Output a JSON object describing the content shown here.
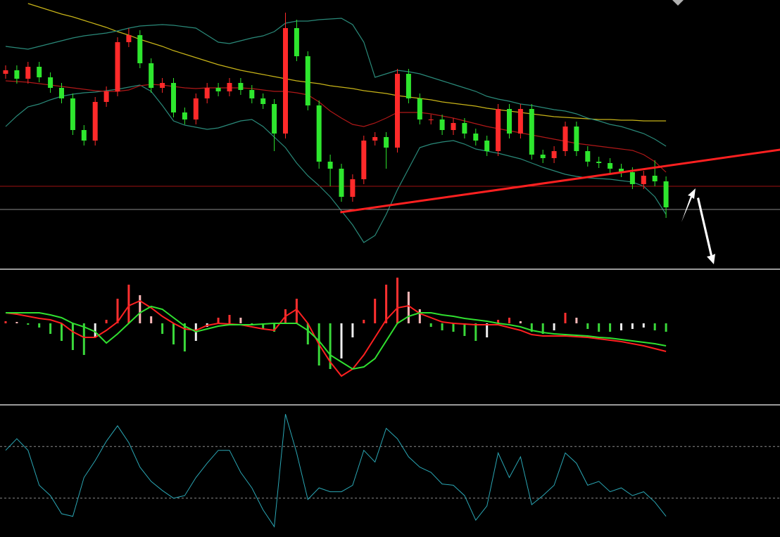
{
  "chart_data": [
    {
      "type": "candlestick",
      "up_color": "#ff2a2a",
      "down_color": "#2ee62e",
      "ylim": [
        -2,
        380
      ],
      "open": [
        275,
        280,
        268,
        285,
        270,
        255,
        240,
        195,
        180,
        235,
        250,
        320,
        330,
        290,
        255,
        262,
        220,
        210,
        240,
        255,
        250,
        262,
        252,
        240,
        232,
        190,
        340,
        300,
        230,
        150,
        140,
        100,
        125,
        180,
        185,
        170,
        275,
        240,
        210,
        210,
        195,
        205,
        190,
        180,
        165,
        225,
        190,
        225,
        160,
        155,
        165,
        200,
        165,
        150,
        148,
        140,
        135,
        118,
        130,
        122
      ],
      "high": [
        287,
        287,
        292,
        292,
        277,
        262,
        247,
        202,
        242,
        257,
        327,
        340,
        337,
        297,
        269,
        269,
        227,
        247,
        262,
        262,
        269,
        269,
        259,
        247,
        239,
        362,
        352,
        307,
        237,
        160,
        147,
        132,
        187,
        192,
        192,
        282,
        282,
        247,
        217,
        217,
        212,
        212,
        197,
        187,
        232,
        232,
        232,
        232,
        167,
        172,
        207,
        207,
        172,
        157,
        155,
        147,
        142,
        137,
        152,
        129
      ],
      "low": [
        268,
        261,
        261,
        263,
        248,
        233,
        188,
        173,
        173,
        228,
        243,
        313,
        283,
        248,
        248,
        213,
        203,
        203,
        233,
        243,
        243,
        245,
        233,
        225,
        165,
        183,
        293,
        223,
        140,
        115,
        93,
        93,
        118,
        173,
        140,
        163,
        233,
        203,
        203,
        188,
        188,
        183,
        173,
        158,
        158,
        183,
        183,
        153,
        148,
        148,
        158,
        158,
        143,
        141,
        133,
        128,
        111,
        111,
        115,
        70
      ],
      "close": [
        280,
        268,
        285,
        270,
        255,
        240,
        195,
        180,
        235,
        250,
        320,
        330,
        290,
        255,
        262,
        220,
        210,
        240,
        255,
        250,
        262,
        252,
        240,
        232,
        190,
        340,
        300,
        230,
        150,
        140,
        100,
        125,
        180,
        185,
        170,
        275,
        240,
        210,
        210,
        195,
        205,
        190,
        180,
        165,
        225,
        190,
        225,
        160,
        155,
        165,
        200,
        165,
        150,
        148,
        140,
        135,
        118,
        130,
        122,
        85
      ],
      "series": [
        {
          "color": "#c8b418",
          "values": [
            null,
            null,
            375,
            370,
            365,
            360,
            356,
            351,
            346,
            341,
            335,
            330,
            324,
            319,
            314,
            308,
            303,
            298,
            293,
            288,
            284,
            280,
            277,
            274,
            271,
            268,
            265,
            263,
            261,
            258,
            256,
            254,
            251,
            249,
            247,
            244,
            242,
            240,
            238,
            235,
            233,
            231,
            229,
            226,
            224,
            222,
            220,
            218,
            216,
            214,
            213,
            212,
            211,
            210,
            210,
            209,
            209,
            208,
            208,
            208
          ]
        },
        {
          "color": "#2a8a7a",
          "values": [
            314,
            312,
            310,
            314,
            318,
            322,
            326,
            329,
            331,
            333,
            336,
            340,
            343,
            344,
            345,
            344,
            342,
            340,
            330,
            320,
            318,
            322,
            326,
            329,
            335,
            347,
            350,
            350,
            352,
            353,
            354,
            345,
            320,
            270,
            275,
            280,
            278,
            275,
            270,
            265,
            260,
            255,
            250,
            243,
            239,
            236,
            232,
            230,
            227,
            224,
            222,
            218,
            212,
            208,
            203,
            200,
            195,
            190,
            182,
            172
          ]
        },
        {
          "color": "#2a8a7a",
          "values": [
            200,
            215,
            228,
            232,
            238,
            243,
            246,
            248,
            249,
            251,
            253,
            256,
            259,
            250,
            230,
            208,
            202,
            199,
            196,
            198,
            203,
            208,
            210,
            200,
            185,
            170,
            148,
            130,
            116,
            100,
            80,
            60,
            35,
            45,
            75,
            110,
            140,
            170,
            175,
            178,
            180,
            175,
            168,
            165,
            162,
            158,
            154,
            148,
            142,
            137,
            132,
            129,
            127,
            126,
            125,
            123,
            121,
            115,
            100,
            75
          ]
        },
        {
          "color": "#b01818",
          "values": [
            265,
            264,
            263,
            261,
            259,
            257,
            255,
            253,
            251,
            250,
            250,
            252,
            258,
            260,
            259,
            257,
            255,
            254,
            255,
            255,
            255,
            255,
            254,
            252,
            250,
            250,
            248,
            245,
            235,
            222,
            212,
            203,
            200,
            205,
            212,
            220,
            220,
            220,
            218,
            215,
            212,
            208,
            204,
            200,
            197,
            194,
            191,
            188,
            185,
            182,
            179,
            176,
            174,
            172,
            170,
            168,
            166,
            160,
            150,
            135
          ]
        }
      ],
      "hlines": [
        {
          "value": 115,
          "color": "#a01010"
        },
        {
          "value": 82,
          "color": "#8a8a8a"
        }
      ],
      "trend_line": {
        "start": [
          29.9,
          78
        ],
        "end": [
          69.2,
          167
        ],
        "color": "#ff2020"
      }
    },
    {
      "type": "macd",
      "ylim": [
        -113,
        75
      ],
      "hist_colors": {
        "pos_up": "#ff3030",
        "pos_down": "#ffb8b8",
        "neg_down": "#3ad83a",
        "neg_up": "#f0f0f0"
      },
      "values": [
        3,
        2,
        -2,
        -6,
        -15,
        -25,
        -38,
        -45,
        -20,
        5,
        35,
        55,
        40,
        10,
        -15,
        -30,
        -40,
        -25,
        -5,
        8,
        12,
        8,
        -3,
        -8,
        -12,
        20,
        35,
        -30,
        -60,
        -65,
        -50,
        -20,
        5,
        35,
        55,
        65,
        45,
        20,
        -5,
        -10,
        -12,
        -18,
        -25,
        -20,
        5,
        8,
        3,
        -12,
        -15,
        -10,
        15,
        8,
        -8,
        -12,
        -12,
        -10,
        -8,
        -6,
        -10,
        -12
      ],
      "series": [
        {
          "color": "#ff2020",
          "values": [
            15,
            13,
            10,
            7,
            5,
            0,
            -12,
            -20,
            -20,
            -10,
            2,
            25,
            32,
            22,
            10,
            0,
            -8,
            -10,
            -3,
            0,
            -1,
            -2,
            -5,
            -8,
            -10,
            10,
            20,
            0,
            -30,
            -55,
            -75,
            -65,
            -45,
            -20,
            5,
            22,
            25,
            14,
            8,
            2,
            0,
            -1,
            -2,
            -2,
            -2,
            -6,
            -10,
            -16,
            -18,
            -18,
            -18,
            -19,
            -20,
            -22,
            -24,
            -26,
            -29,
            -32,
            -36,
            -40
          ]
        },
        {
          "color": "#30e030",
          "values": [
            15,
            15,
            15,
            15,
            12,
            8,
            0,
            -5,
            -12,
            -28,
            -15,
            0,
            15,
            24,
            20,
            8,
            -4,
            -12,
            -8,
            -4,
            -2,
            -2,
            -2,
            -1,
            0,
            0,
            0,
            -10,
            -25,
            -45,
            -55,
            -65,
            -62,
            -50,
            -25,
            0,
            10,
            15,
            15,
            12,
            10,
            7,
            5,
            3,
            0,
            -2,
            -5,
            -10,
            -13,
            -15,
            -16,
            -17,
            -18,
            -20,
            -21,
            -23,
            -25,
            -27,
            -29,
            -32
          ]
        }
      ]
    },
    {
      "type": "line",
      "ylim": [
        0,
        100
      ],
      "reference_lines": [
        70,
        30
      ],
      "series": [
        {
          "color": "#2aa6b4",
          "values": [
            67,
            76,
            67,
            40,
            32,
            18,
            16,
            46,
            59,
            74,
            86,
            73,
            54,
            43,
            36,
            30,
            32,
            46,
            57,
            67,
            67,
            50,
            38,
            21,
            8,
            95,
            65,
            29,
            38,
            35,
            35,
            40,
            67,
            58,
            84,
            76,
            62,
            54,
            50,
            41,
            40,
            32,
            13,
            24,
            65,
            46,
            62,
            25,
            32,
            40,
            65,
            57,
            40,
            43,
            35,
            38,
            32,
            35,
            27,
            16
          ]
        }
      ]
    }
  ]
}
